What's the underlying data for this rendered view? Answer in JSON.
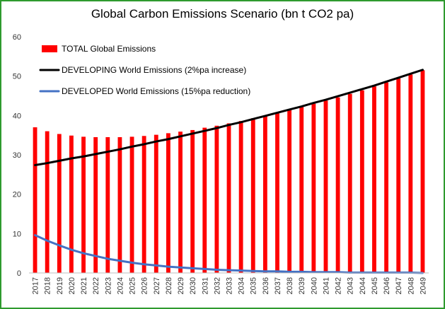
{
  "chart_data": {
    "type": "bar",
    "title": "Global Carbon Emissions Scenario (bn t CO2 pa)",
    "xlabel": "",
    "ylabel": "",
    "ylim": [
      0,
      60
    ],
    "yticks": [
      0,
      10,
      20,
      30,
      40,
      50,
      60
    ],
    "grid": false,
    "legend_position": "top-left",
    "categories": [
      "2017",
      "2018",
      "2019",
      "2020",
      "2021",
      "2022",
      "2023",
      "2024",
      "2025",
      "2026",
      "2027",
      "2028",
      "2029",
      "2030",
      "2031",
      "2032",
      "2033",
      "2034",
      "2035",
      "2036",
      "2037",
      "2038",
      "2039",
      "2040",
      "2041",
      "2042",
      "2043",
      "2044",
      "2045",
      "2046",
      "2047",
      "2048",
      "2049"
    ],
    "series": [
      {
        "name": "TOTAL Global Emissions",
        "type": "bar",
        "color": "#ff0000",
        "values": [
          37.0,
          36.0,
          35.3,
          34.9,
          34.6,
          34.5,
          34.5,
          34.5,
          34.6,
          34.8,
          35.1,
          35.5,
          35.9,
          36.3,
          36.9,
          37.4,
          38.0,
          38.6,
          39.3,
          40.0,
          40.7,
          41.4,
          42.2,
          43.0,
          43.8,
          44.6,
          45.5,
          46.4,
          47.4,
          48.4,
          49.4,
          50.4,
          51.5
        ]
      },
      {
        "name": "DEVELOPING World Emissions (2%pa increase)",
        "type": "line",
        "color": "#000000",
        "values": [
          27.4,
          27.9,
          28.5,
          29.1,
          29.6,
          30.2,
          30.8,
          31.4,
          32.1,
          32.7,
          33.4,
          34.0,
          34.7,
          35.4,
          36.1,
          36.8,
          37.6,
          38.3,
          39.1,
          39.9,
          40.7,
          41.5,
          42.3,
          43.2,
          44.0,
          44.9,
          45.8,
          46.7,
          47.6,
          48.6,
          49.6,
          50.6,
          51.6
        ]
      },
      {
        "name": "DEVELOPED World Emissions (15%pa reduction)",
        "type": "line",
        "color": "#4472c4",
        "values": [
          9.6,
          8.2,
          7.0,
          5.9,
          5.0,
          4.3,
          3.6,
          3.1,
          2.6,
          2.2,
          1.9,
          1.6,
          1.4,
          1.2,
          1.0,
          0.8,
          0.7,
          0.6,
          0.5,
          0.4,
          0.4,
          0.3,
          0.3,
          0.2,
          0.2,
          0.2,
          0.1,
          0.1,
          0.1,
          0.1,
          0.1,
          0.1,
          0.0
        ]
      }
    ]
  }
}
